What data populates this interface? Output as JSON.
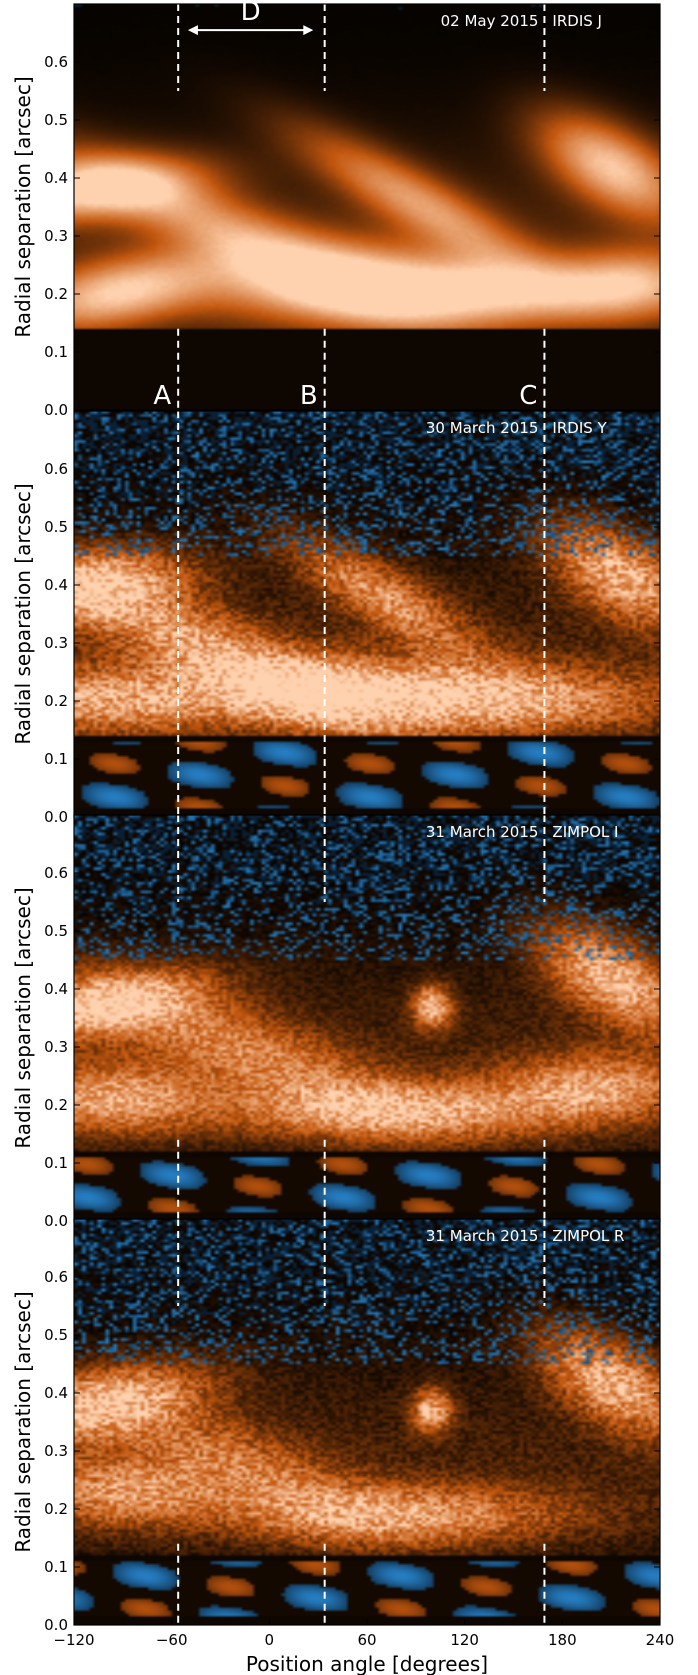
{
  "chart_data": {
    "type": "heatmap",
    "xlabel": "Position angle [degrees]",
    "xlim": [
      -120,
      240
    ],
    "xticks": [
      -120,
      -60,
      0,
      60,
      120,
      180,
      240
    ],
    "xtick_labels": [
      "−120",
      "−60",
      "0",
      "60",
      "120",
      "180",
      "240"
    ],
    "ylabel": "Radial separation [arcsec]",
    "ylim": [
      0.0,
      0.7
    ],
    "yticks": [
      0.0,
      0.1,
      0.2,
      0.3,
      0.4,
      0.5,
      0.6
    ],
    "ytick_labels": [
      "0.0",
      "0.1",
      "0.2",
      "0.3",
      "0.4",
      "0.5",
      "0.6"
    ],
    "colors": {
      "bright": "#ff9a2e",
      "dark": "#000000",
      "negative": "#2f8fdc"
    },
    "reference_lines": [
      {
        "label": "A",
        "x": -56
      },
      {
        "label": "B",
        "x": 34
      },
      {
        "label": "C",
        "x": 169
      }
    ],
    "span_annotation": {
      "label": "D",
      "x_from": -50,
      "x_to": 27,
      "y": 0.655
    },
    "panels": [
      {
        "date": "02 May 2015",
        "instrument": "IRDIS J",
        "mask_below": 0.14,
        "noise": 0.02,
        "negative": false,
        "lines_full": false,
        "bands": [
          {
            "x": -110,
            "y": 0.38,
            "amp": 1.0,
            "sx": 45,
            "sy": 0.035,
            "slope": 0.0003
          },
          {
            "x": -95,
            "y": 0.2,
            "amp": 0.95,
            "sx": 40,
            "sy": 0.04,
            "slope": 0.0005
          },
          {
            "x": -20,
            "y": 0.3,
            "amp": 0.7,
            "sx": 80,
            "sy": 0.045,
            "slope": -0.0012
          },
          {
            "x": 40,
            "y": 0.22,
            "amp": 0.85,
            "sx": 60,
            "sy": 0.05,
            "slope": 0.0
          },
          {
            "x": 90,
            "y": 0.36,
            "amp": 0.75,
            "sx": 50,
            "sy": 0.04,
            "slope": -0.0015
          },
          {
            "x": 140,
            "y": 0.2,
            "amp": 0.9,
            "sx": 60,
            "sy": 0.04,
            "slope": 0.0
          },
          {
            "x": 210,
            "y": 0.42,
            "amp": 1.0,
            "sx": 30,
            "sy": 0.05,
            "slope": -0.0012
          },
          {
            "x": 225,
            "y": 0.22,
            "amp": 0.7,
            "sx": 30,
            "sy": 0.04,
            "slope": 0.0
          }
        ]
      },
      {
        "date": "30 March 2015",
        "instrument": "IRDIS Y",
        "mask_below": 0.14,
        "noise": 0.35,
        "negative": true,
        "lines_full": true,
        "bands": [
          {
            "x": -110,
            "y": 0.4,
            "amp": 0.9,
            "sx": 40,
            "sy": 0.04,
            "slope": 0.0003
          },
          {
            "x": -100,
            "y": 0.2,
            "amp": 0.8,
            "sx": 50,
            "sy": 0.04,
            "slope": 0.0
          },
          {
            "x": -30,
            "y": 0.28,
            "amp": 0.75,
            "sx": 70,
            "sy": 0.05,
            "slope": -0.0012
          },
          {
            "x": 40,
            "y": 0.22,
            "amp": 0.75,
            "sx": 60,
            "sy": 0.04,
            "slope": 0.0
          },
          {
            "x": 70,
            "y": 0.38,
            "amp": 0.7,
            "sx": 40,
            "sy": 0.04,
            "slope": -0.0015
          },
          {
            "x": 140,
            "y": 0.2,
            "amp": 0.8,
            "sx": 70,
            "sy": 0.04,
            "slope": 0.0
          },
          {
            "x": 215,
            "y": 0.42,
            "amp": 0.9,
            "sx": 30,
            "sy": 0.05,
            "slope": -0.0012
          }
        ]
      },
      {
        "date": "31 March 2015",
        "instrument": "ZIMPOL I",
        "mask_below": 0.12,
        "noise": 0.3,
        "negative": true,
        "lines_full": false,
        "bands": [
          {
            "x": -105,
            "y": 0.37,
            "amp": 0.9,
            "sx": 45,
            "sy": 0.035,
            "slope": 0.0005
          },
          {
            "x": -95,
            "y": 0.21,
            "amp": 0.8,
            "sx": 40,
            "sy": 0.04,
            "slope": 0.0
          },
          {
            "x": -20,
            "y": 0.3,
            "amp": 0.6,
            "sx": 70,
            "sy": 0.05,
            "slope": -0.001
          },
          {
            "x": 100,
            "y": 0.37,
            "amp": 0.95,
            "sx": 8,
            "sy": 0.025,
            "slope": 0.0
          },
          {
            "x": 80,
            "y": 0.19,
            "amp": 0.8,
            "sx": 70,
            "sy": 0.035,
            "slope": 0.0
          },
          {
            "x": 210,
            "y": 0.42,
            "amp": 0.95,
            "sx": 30,
            "sy": 0.05,
            "slope": -0.0012
          },
          {
            "x": 200,
            "y": 0.23,
            "amp": 0.7,
            "sx": 40,
            "sy": 0.04,
            "slope": 0.0
          }
        ]
      },
      {
        "date": "31 March 2015",
        "instrument": "ZIMPOL R",
        "mask_below": 0.12,
        "noise": 0.35,
        "negative": true,
        "lines_full": false,
        "bands": [
          {
            "x": -105,
            "y": 0.38,
            "amp": 0.9,
            "sx": 45,
            "sy": 0.04,
            "slope": 0.0005
          },
          {
            "x": -90,
            "y": 0.23,
            "amp": 0.7,
            "sx": 40,
            "sy": 0.04,
            "slope": 0.0
          },
          {
            "x": -20,
            "y": 0.28,
            "amp": 0.5,
            "sx": 60,
            "sy": 0.05,
            "slope": -0.001
          },
          {
            "x": 100,
            "y": 0.37,
            "amp": 0.9,
            "sx": 8,
            "sy": 0.025,
            "slope": 0.0
          },
          {
            "x": 80,
            "y": 0.19,
            "amp": 0.75,
            "sx": 70,
            "sy": 0.035,
            "slope": 0.0
          },
          {
            "x": 210,
            "y": 0.42,
            "amp": 0.9,
            "sx": 30,
            "sy": 0.05,
            "slope": -0.0012
          }
        ]
      }
    ]
  }
}
